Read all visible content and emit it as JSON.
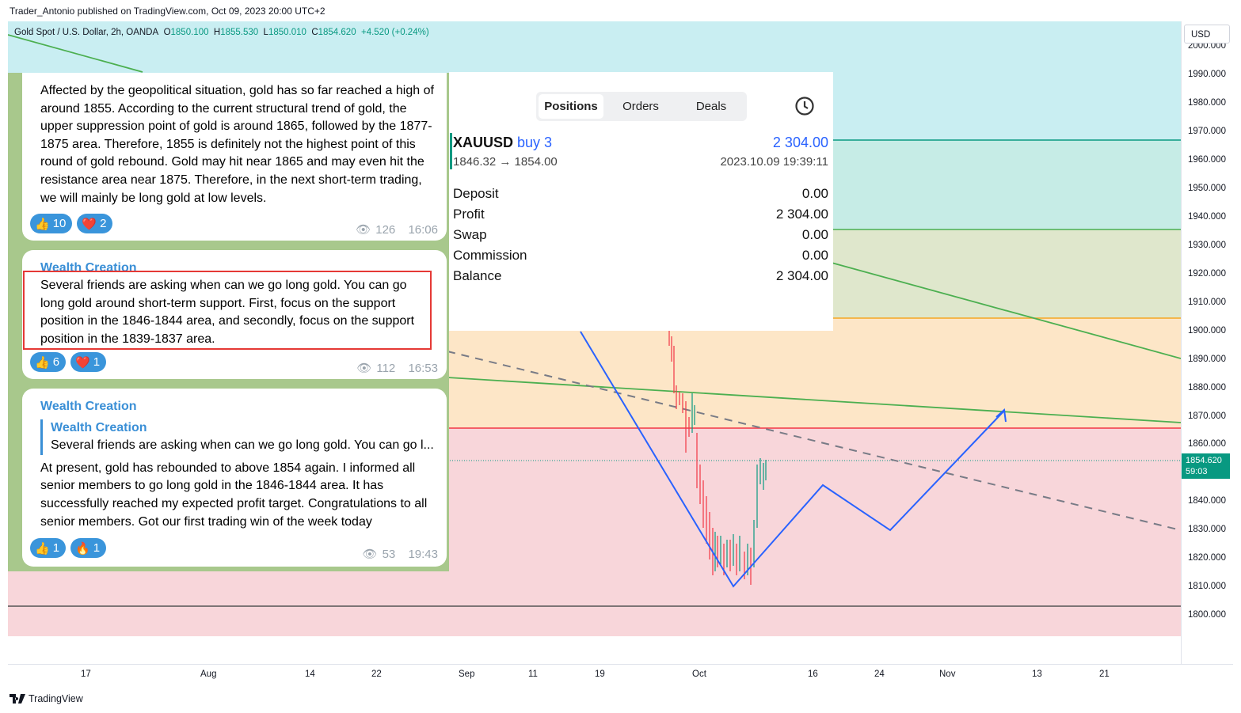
{
  "header": {
    "publish_text": "Trader_Antonio published on TradingView.com, Oct 09, 2023 20:00 UTC+2"
  },
  "ticker": {
    "symbol": "Gold Spot / U.S. Dollar, 2h, OANDA",
    "open_label": "O",
    "open": "1850.100",
    "high_label": "H",
    "high": "1855.530",
    "low_label": "L",
    "low": "1850.010",
    "close_label": "C",
    "close": "1854.620",
    "change": "+4.520 (+0.24%)"
  },
  "price_axis": {
    "currency": "USD",
    "ticks": [
      "2000.000",
      "1990.000",
      "1980.000",
      "1970.000",
      "1960.000",
      "1950.000",
      "1940.000",
      "1930.000",
      "1920.000",
      "1910.000",
      "1900.000",
      "1890.000",
      "1880.000",
      "1870.000",
      "1860.000",
      "1840.000",
      "1830.000",
      "1820.000",
      "1810.000",
      "1800.000"
    ],
    "current_price": "1854.620",
    "countdown": "59:03"
  },
  "time_axis": {
    "labels": [
      "17",
      "Aug",
      "14",
      "22",
      "Sep",
      "11",
      "19",
      "Oct",
      "16",
      "24",
      "Nov",
      "13",
      "21"
    ]
  },
  "brand": {
    "name": "TradingView"
  },
  "colors": {
    "buy_blue": "#2962ff",
    "up": "#089981",
    "down": "#f23645",
    "zone_red": "#f8d6da",
    "zone_orange": "#fde6c7",
    "zone_green": "#dfe7cc",
    "zone_teal": "#c6ece6",
    "sky": "#c9eef2"
  },
  "telegram": {
    "msg1": {
      "text": "Affected by the geopolitical situation, gold has so far reached a high of around 1855. According to the current structural trend of gold, the upper suppression point of gold is around 1865, followed by the 1877-1875 area. Therefore, 1855 is definitely not the highest point of this round of gold rebound. Gold may hit near 1865 and may even hit the resistance area near 1875. Therefore, in the next short-term trading, we will mainly be long gold at low levels.",
      "likes": "10",
      "hearts": "2",
      "views": "126",
      "time": "16:06"
    },
    "msg2": {
      "sender": "Wealth Creation",
      "text": "Several friends are asking when can we go long gold. You can go long gold around short-term support. First, focus on the support position in the 1846-1844 area, and secondly, focus on the support position in the 1839-1837 area.",
      "likes": "6",
      "hearts": "1",
      "views": "112",
      "time": "16:53"
    },
    "msg3": {
      "sender": "Wealth Creation",
      "reply_sender": "Wealth Creation",
      "reply_text": "Several friends are asking when can we go long gold. You can go l...",
      "text": "At present, gold has rebounded to above 1854 again. I informed all senior members to go long gold in the 1846-1844 area. It has successfully reached my expected profit target. Congratulations to all senior members. Got our first trading win of the week today",
      "likes": "1",
      "fires": "1",
      "views": "53",
      "time": "19:43"
    }
  },
  "positions": {
    "tabs": [
      "Positions",
      "Orders",
      "Deals"
    ],
    "symbol": "XAUUSD",
    "side": "buy 3",
    "profit_head": "2 304.00",
    "price_path": "1846.32 → 1854.00",
    "datetime": "2023.10.09 19:39:11",
    "rows": [
      {
        "label": "Deposit",
        "value": "0.00"
      },
      {
        "label": "Profit",
        "value": "2 304.00"
      },
      {
        "label": "Swap",
        "value": "0.00"
      },
      {
        "label": "Commission",
        "value": "0.00"
      },
      {
        "label": "Balance",
        "value": "2 304.00"
      }
    ]
  }
}
